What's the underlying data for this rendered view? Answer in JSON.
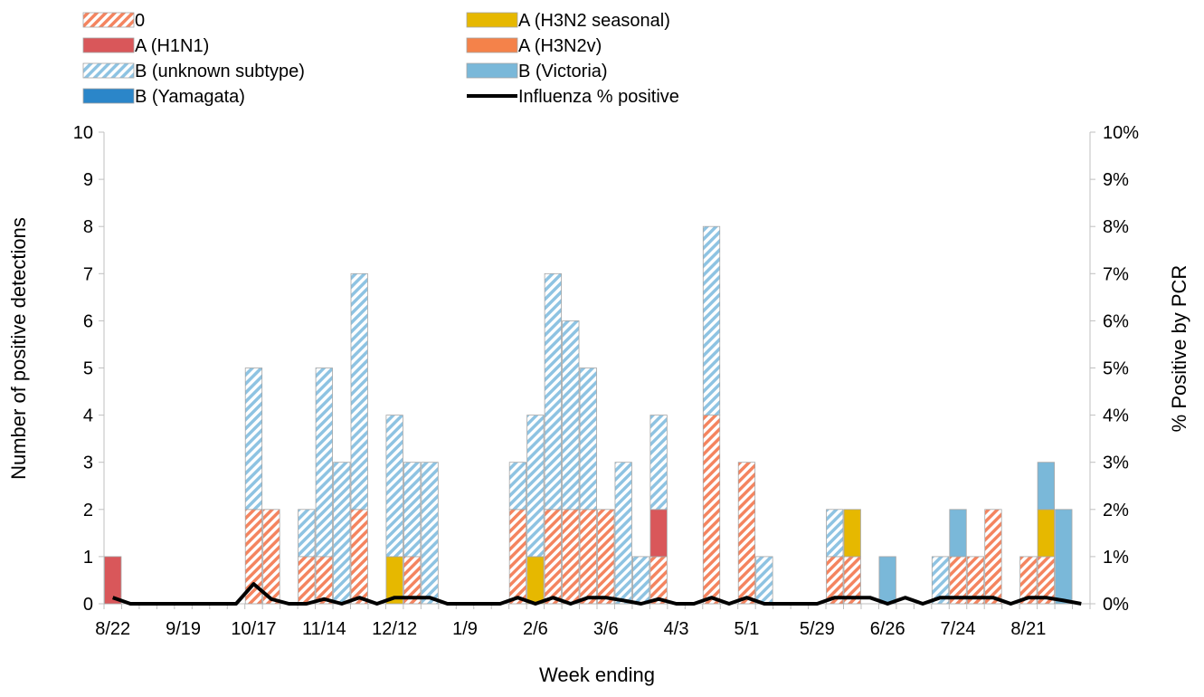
{
  "chart_data": {
    "type": "bar",
    "stacked": true,
    "xlabel": "Week ending",
    "ylabel": "Number of positive detections",
    "y2label": "% Positive by PCR",
    "ylim": [
      0,
      10
    ],
    "y2lim": [
      0,
      0.1
    ],
    "y_ticks": [
      "0",
      "1",
      "2",
      "3",
      "4",
      "5",
      "6",
      "7",
      "8",
      "9",
      "10"
    ],
    "y2_ticks": [
      "0%",
      "1%",
      "2%",
      "3%",
      "4%",
      "5%",
      "6%",
      "7%",
      "8%",
      "9%",
      "10%"
    ],
    "x_tick_labels": [
      "8/22",
      "9/19",
      "10/17",
      "11/14",
      "12/12",
      "1/9",
      "2/6",
      "3/6",
      "4/3",
      "5/1",
      "5/29",
      "6/26",
      "7/24",
      "8/21"
    ],
    "x_tick_weeks": [
      0,
      4,
      8,
      12,
      16,
      20,
      24,
      28,
      32,
      36,
      40,
      44,
      48,
      52
    ],
    "n_weeks": 56,
    "legend_position": "top",
    "series": [
      {
        "name": "0",
        "color": "#f4845f",
        "pattern": "hatch-orange",
        "values": [
          0,
          0,
          0,
          0,
          0,
          0,
          0,
          0,
          2,
          2,
          0,
          1,
          1,
          0,
          2,
          0,
          0,
          1,
          0,
          0,
          0,
          0,
          0,
          2,
          0,
          2,
          2,
          2,
          2,
          0,
          0,
          1,
          0,
          0,
          4,
          0,
          3,
          0,
          0,
          0,
          0,
          1,
          1,
          0,
          0,
          0,
          0,
          0,
          1,
          1,
          2,
          0,
          1,
          1,
          0,
          0
        ]
      },
      {
        "name": "A (H3N2 seasonal)",
        "color": "#e6b800",
        "pattern": "solid",
        "values": [
          0,
          0,
          0,
          0,
          0,
          0,
          0,
          0,
          0,
          0,
          0,
          0,
          0,
          0,
          0,
          0,
          1,
          0,
          0,
          0,
          0,
          0,
          0,
          0,
          1,
          0,
          0,
          0,
          0,
          0,
          0,
          0,
          0,
          0,
          0,
          0,
          0,
          0,
          0,
          0,
          0,
          0,
          1,
          0,
          0,
          0,
          0,
          0,
          0,
          0,
          0,
          0,
          0,
          1,
          0,
          0
        ]
      },
      {
        "name": "A (H1N1)",
        "color": "#d9575a",
        "pattern": "solid",
        "values": [
          1,
          0,
          0,
          0,
          0,
          0,
          0,
          0,
          0,
          0,
          0,
          0,
          0,
          0,
          0,
          0,
          0,
          0,
          0,
          0,
          0,
          0,
          0,
          0,
          0,
          0,
          0,
          0,
          0,
          0,
          0,
          1,
          0,
          0,
          0,
          0,
          0,
          0,
          0,
          0,
          0,
          0,
          0,
          0,
          0,
          0,
          0,
          0,
          0,
          0,
          0,
          0,
          0,
          0,
          0,
          0
        ]
      },
      {
        "name": "A (H3N2v)",
        "color": "#f4824a",
        "pattern": "solid",
        "values": [
          0,
          0,
          0,
          0,
          0,
          0,
          0,
          0,
          0,
          0,
          0,
          0,
          0,
          0,
          0,
          0,
          0,
          0,
          0,
          0,
          0,
          0,
          0,
          0,
          0,
          0,
          0,
          0,
          0,
          0,
          0,
          0,
          0,
          0,
          0,
          0,
          0,
          0,
          0,
          0,
          0,
          0,
          0,
          0,
          0,
          0,
          0,
          0,
          0,
          0,
          0,
          0,
          0,
          0,
          0,
          0
        ]
      },
      {
        "name": "B (unknown subtype)",
        "color": "#8ec3e2",
        "pattern": "hatch-blue",
        "values": [
          0,
          0,
          0,
          0,
          0,
          0,
          0,
          0,
          3,
          0,
          0,
          1,
          4,
          3,
          5,
          0,
          3,
          2,
          3,
          0,
          0,
          0,
          0,
          1,
          3,
          5,
          4,
          3,
          0,
          3,
          1,
          2,
          0,
          0,
          4,
          0,
          0,
          1,
          0,
          0,
          0,
          1,
          0,
          0,
          0,
          0,
          0,
          1,
          0,
          0,
          0,
          0,
          0,
          0,
          0,
          0
        ]
      },
      {
        "name": "B (Victoria)",
        "color": "#7ab8d9",
        "pattern": "solid",
        "values": [
          0,
          0,
          0,
          0,
          0,
          0,
          0,
          0,
          0,
          0,
          0,
          0,
          0,
          0,
          0,
          0,
          0,
          0,
          0,
          0,
          0,
          0,
          0,
          0,
          0,
          0,
          0,
          0,
          0,
          0,
          0,
          0,
          0,
          0,
          0,
          0,
          0,
          0,
          0,
          0,
          0,
          0,
          0,
          0,
          1,
          0,
          0,
          0,
          1,
          0,
          0,
          0,
          0,
          1,
          2,
          0
        ]
      },
      {
        "name": "B (Yamagata)",
        "color": "#2b86c9",
        "pattern": "solid",
        "values": [
          0,
          0,
          0,
          0,
          0,
          0,
          0,
          0,
          0,
          0,
          0,
          0,
          0,
          0,
          0,
          0,
          0,
          0,
          0,
          0,
          0,
          0,
          0,
          0,
          0,
          0,
          0,
          0,
          0,
          0,
          0,
          0,
          0,
          0,
          0,
          0,
          0,
          0,
          0,
          0,
          0,
          0,
          0,
          0,
          0,
          0,
          0,
          0,
          0,
          0,
          0,
          0,
          0,
          0,
          0,
          0
        ]
      }
    ],
    "line": {
      "name": "Influenza % positive",
      "color": "#000000",
      "values": [
        0.0013,
        0,
        0,
        0,
        0,
        0,
        0,
        0,
        0.0042,
        0.001,
        0,
        0,
        0.001,
        0,
        0.0013,
        0,
        0.0013,
        0.0013,
        0.0013,
        0,
        0,
        0,
        0,
        0.0013,
        0,
        0.0013,
        0,
        0.0013,
        0.0013,
        0.0007,
        0,
        0.001,
        0,
        0,
        0.0013,
        0,
        0.0013,
        0,
        0,
        0,
        0,
        0.0013,
        0.0013,
        0.0013,
        0,
        0.0013,
        0,
        0.0013,
        0.0013,
        0.0013,
        0.0013,
        0,
        0.0013,
        0.0013,
        0.0007,
        0
      ]
    }
  }
}
